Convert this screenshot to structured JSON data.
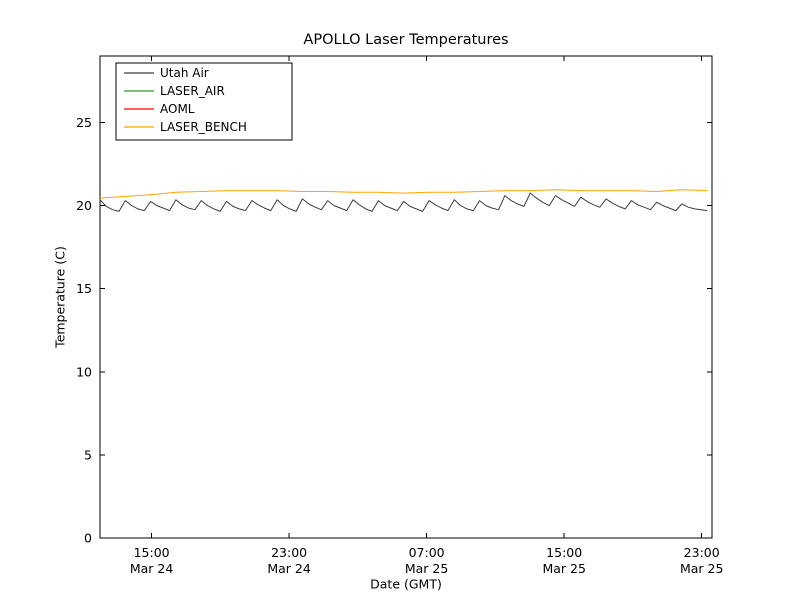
{
  "chart_data": {
    "type": "line",
    "title": "APOLLO Laser Temperatures",
    "xlabel": "Date (GMT)",
    "ylabel": "Temperature (C)",
    "grid": false,
    "legend_position": "upper-left",
    "x_unit": "hours from left edge of plot (left edge = ~12:00 Mar 24 GMT)",
    "xlim": [
      0,
      35.6
    ],
    "ylim": [
      0,
      29
    ],
    "yticks": [
      0,
      5,
      10,
      15,
      20,
      25
    ],
    "xticks": [
      {
        "t": 3,
        "line1": "15:00",
        "line2": "Mar 24"
      },
      {
        "t": 11,
        "line1": "23:00",
        "line2": "Mar 24"
      },
      {
        "t": 19,
        "line1": "07:00",
        "line2": "Mar 25"
      },
      {
        "t": 27,
        "line1": "15:00",
        "line2": "Mar 25"
      },
      {
        "t": 35,
        "line1": "23:00",
        "line2": "Mar 25"
      }
    ],
    "series": [
      {
        "name": "Utah Air",
        "color": "#3f3f3f",
        "x_start": 0,
        "x_step": 0.368,
        "values": [
          20.35,
          19.95,
          19.75,
          19.65,
          20.3,
          20.0,
          19.8,
          19.7,
          20.25,
          20.0,
          19.85,
          19.7,
          20.35,
          20.05,
          19.85,
          19.75,
          20.3,
          20.0,
          19.8,
          19.65,
          20.25,
          19.95,
          19.8,
          19.7,
          20.3,
          20.05,
          19.85,
          19.7,
          20.35,
          20.0,
          19.8,
          19.65,
          20.4,
          20.1,
          19.9,
          19.75,
          20.3,
          20.0,
          19.85,
          19.7,
          20.35,
          20.05,
          19.8,
          19.65,
          20.3,
          20.0,
          19.85,
          19.7,
          20.25,
          19.95,
          19.8,
          19.65,
          20.3,
          20.05,
          19.85,
          19.7,
          20.35,
          20.0,
          19.8,
          19.7,
          20.3,
          20.0,
          19.85,
          19.75,
          20.6,
          20.3,
          20.1,
          19.95,
          20.75,
          20.45,
          20.2,
          20.0,
          20.6,
          20.35,
          20.15,
          19.95,
          20.5,
          20.25,
          20.05,
          19.9,
          20.4,
          20.15,
          19.95,
          19.8,
          20.3,
          20.05,
          19.9,
          19.75,
          20.2,
          20.0,
          19.85,
          19.7,
          20.1,
          19.9,
          19.8,
          19.75,
          19.7
        ]
      },
      {
        "name": "LASER_AIR",
        "color": "#339933",
        "x_start": 0,
        "x_step": 1.472,
        "values": []
      },
      {
        "name": "AOML",
        "color": "#ff0000",
        "x_start": 0,
        "x_step": 1.472,
        "values": []
      },
      {
        "name": "LASER_BENCH",
        "color": "#ffa500",
        "x_start": 0,
        "x_step": 1.472,
        "values": [
          20.45,
          20.55,
          20.65,
          20.8,
          20.85,
          20.9,
          20.9,
          20.9,
          20.85,
          20.85,
          20.8,
          20.8,
          20.75,
          20.8,
          20.8,
          20.85,
          20.9,
          20.9,
          20.95,
          20.9,
          20.9,
          20.9,
          20.85,
          20.95,
          20.9
        ]
      }
    ]
  }
}
